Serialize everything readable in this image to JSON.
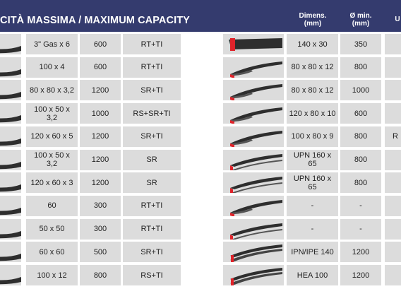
{
  "header": {
    "title": "CITÀ MASSIMA /  MAXIMUM CAPACITY",
    "dimens": [
      "Dimens.",
      "(mm)"
    ],
    "diam": [
      "Ø min.",
      "(mm)"
    ],
    "partial": "U"
  },
  "colors": {
    "header_bg": "#343b6e",
    "cell_bg": "#dcdcdc",
    "profile_dark": "#2e2e2e",
    "profile_red": "#e0232a"
  },
  "left_rows": [
    {
      "dim": "3\" Gas x 6",
      "val": "600",
      "code": "RT+TI"
    },
    {
      "dim": "100 x 4",
      "val": "600",
      "code": "RT+TI"
    },
    {
      "dim": "80 x 80 x 3,2",
      "val": "1200",
      "code": "SR+TI"
    },
    {
      "dim": "100 x 50 x 3,2",
      "val": "1000",
      "code": "RS+SR+TI"
    },
    {
      "dim": "120 x 60 x 5",
      "val": "1200",
      "code": "SR+TI"
    },
    {
      "dim": "100 x 50 x 3,2",
      "val": "1200",
      "code": "SR"
    },
    {
      "dim": "120 x 60 x 3",
      "val": "1200",
      "code": "SR"
    },
    {
      "dim": "60",
      "val": "300",
      "code": "RT+TI"
    },
    {
      "dim": "50 x 50",
      "val": "300",
      "code": "RT+TI"
    },
    {
      "dim": "60 x 60",
      "val": "500",
      "code": "SR+TI"
    },
    {
      "dim": "100 x 12",
      "val": "800",
      "code": "RS+TI"
    }
  ],
  "right_rows": [
    {
      "profile": "flat-bar-icon",
      "dim": "140 x 30",
      "val": "350",
      "partial": ""
    },
    {
      "profile": "angle-icon",
      "dim": "80 x 80 x 12",
      "val": "800",
      "partial": ""
    },
    {
      "profile": "angle-icon",
      "dim": "80 x 80 x 12",
      "val": "1000",
      "partial": ""
    },
    {
      "profile": "angle-icon",
      "dim": "120 x 80 x 10",
      "val": "600",
      "partial": ""
    },
    {
      "profile": "angle-icon",
      "dim": "100 x 80 x 9",
      "val": "800",
      "partial": "R"
    },
    {
      "profile": "channel-icon",
      "dim": "UPN 160 x 65",
      "val": "800",
      "partial": ""
    },
    {
      "profile": "channel-icon",
      "dim": "UPN 160 x 65",
      "val": "800",
      "partial": ""
    },
    {
      "profile": "angle-icon",
      "dim": "-",
      "val": "-",
      "partial": ""
    },
    {
      "profile": "channel-icon",
      "dim": "-",
      "val": "-",
      "partial": ""
    },
    {
      "profile": "i-beam-icon",
      "dim": "IPN/IPE 140",
      "val": "1200",
      "partial": ""
    },
    {
      "profile": "i-beam-icon",
      "dim": "HEA 100",
      "val": "1200",
      "partial": ""
    }
  ]
}
